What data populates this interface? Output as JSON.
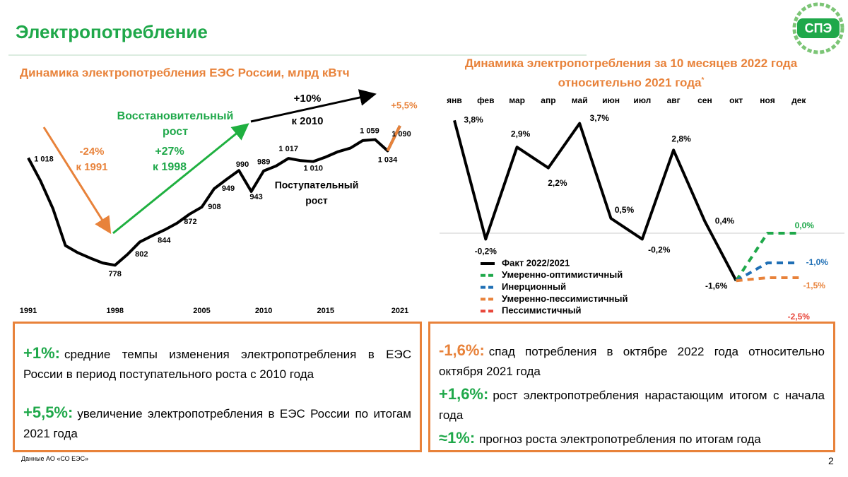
{
  "header": {
    "title": "Электропотребление",
    "logo": "СПЭ"
  },
  "chart_data": [
    {
      "type": "line",
      "title": "Динамика электропотребления ЕЭС России, млрд кВтч",
      "x": [
        1991,
        1992,
        1993,
        1994,
        1995,
        1996,
        1997,
        1998,
        1999,
        2000,
        2001,
        2002,
        2003,
        2004,
        2005,
        2006,
        2007,
        2008,
        2009,
        2010,
        2011,
        2012,
        2013,
        2014,
        2015,
        2016,
        2017,
        2018,
        2019,
        2020,
        2021
      ],
      "xlim": [
        1991,
        2021
      ],
      "xticks": [
        1991,
        1998,
        2005,
        2010,
        2015,
        2021
      ],
      "ylim": [
        720,
        1150
      ],
      "series": [
        {
          "color": "#000000",
          "last_segment_color": "#e8823a",
          "values": [
            1018,
            966,
            904,
            822,
            806,
            794,
            783,
            778,
            802,
            830,
            844,
            857,
            872,
            892,
            908,
            949,
            970,
            990,
            943,
            989,
            1000,
            1017,
            1012,
            1010,
            1020,
            1032,
            1040,
            1057,
            1059,
            1034,
            1090
          ],
          "value_labels": [
            "1 018",
            null,
            null,
            null,
            null,
            null,
            null,
            "778",
            "802",
            null,
            "844",
            null,
            "872",
            null,
            "908",
            "949",
            null,
            "990",
            "943",
            "989",
            null,
            "1 017",
            null,
            "1 010",
            null,
            null,
            null,
            null,
            "1 059",
            "1 034",
            "1 090"
          ]
        }
      ],
      "annotations": [
        {
          "lines": [
            "-24%",
            "к 1991"
          ],
          "color": "#e8823a"
        },
        {
          "lines": [
            "Восстановительный",
            "рост"
          ],
          "color": "#1fa84a"
        },
        {
          "lines": [
            "+27%",
            "к 1998"
          ],
          "color": "#1fa84a"
        },
        {
          "lines": [
            "+10%",
            "к 2010"
          ],
          "color": "#000000"
        },
        {
          "lines": [
            "Поступательный",
            "рост"
          ],
          "color": "#000000"
        },
        {
          "lines": [
            "+5,5%"
          ],
          "color": "#e8823a"
        }
      ]
    },
    {
      "type": "line",
      "title": "Динамика электропотребления за 10 месяцев 2022 года относительно 2021 года",
      "title_note": "*",
      "categories": [
        "янв",
        "фев",
        "мар",
        "апр",
        "май",
        "июн",
        "июл",
        "авг",
        "сен",
        "окт",
        "ноя",
        "дек"
      ],
      "ylim": [
        -3,
        4.5
      ],
      "series": [
        {
          "name": "Факт 2022/2021",
          "color": "#000000",
          "line_style": "solid",
          "values": [
            3.8,
            -0.2,
            2.9,
            2.2,
            3.7,
            0.5,
            -0.2,
            2.8,
            0.4,
            -1.6,
            null,
            null
          ],
          "value_labels": [
            "3,8%",
            "-0,2%",
            "2,9%",
            "2,2%",
            "3,7%",
            "0,5%",
            "-0,2%",
            "2,8%",
            "0,4%",
            "-1,6%",
            null,
            null
          ]
        },
        {
          "name": "Умеренно-оптимистичный",
          "color": "#1fa84a",
          "line_style": "dashed",
          "values": [
            null,
            null,
            null,
            null,
            null,
            null,
            null,
            null,
            null,
            -1.6,
            0.0,
            0.0
          ],
          "value_labels": [
            null,
            null,
            null,
            null,
            null,
            null,
            null,
            null,
            null,
            null,
            null,
            "0,0%"
          ]
        },
        {
          "name": "Инерционный",
          "color": "#1f6fb5",
          "line_style": "dashed",
          "values": [
            null,
            null,
            null,
            null,
            null,
            null,
            null,
            null,
            null,
            -1.6,
            -1.0,
            -1.0
          ],
          "value_labels": [
            null,
            null,
            null,
            null,
            null,
            null,
            null,
            null,
            null,
            null,
            null,
            "-1,0%"
          ]
        },
        {
          "name": "Умеренно-пессимистичный",
          "color": "#e8823a",
          "line_style": "dashed",
          "values": [
            null,
            null,
            null,
            null,
            null,
            null,
            null,
            null,
            null,
            -1.6,
            -1.5,
            -1.5
          ],
          "value_labels": [
            null,
            null,
            null,
            null,
            null,
            null,
            null,
            null,
            null,
            null,
            null,
            "-1,5%"
          ]
        },
        {
          "name": "Пессимистичный",
          "color": "#e8463a",
          "line_style": "dashed",
          "values": [
            null,
            null,
            null,
            null,
            null,
            null,
            null,
            null,
            null,
            -1.6,
            null,
            -2.5
          ],
          "value_labels": [
            null,
            null,
            null,
            null,
            null,
            null,
            null,
            null,
            null,
            null,
            null,
            "-2,5%"
          ]
        }
      ]
    }
  ],
  "notes_left": [
    {
      "lead": "+1%:",
      "text": "средние темпы изменения электропотребления в ЕЭС России в период поступательного роста с 2010 года"
    },
    {
      "lead": "+5,5%:",
      "text": "увеличение электропотребления в ЕЭС России по итогам 2021 года"
    }
  ],
  "notes_right": [
    {
      "lead": "-1,6%:",
      "text": "спад потребления в октябре 2022 года относительно октября 2021 года"
    },
    {
      "lead": "+1,6%:",
      "text": "рост электропотребления нарастающим итогом с начала года"
    },
    {
      "lead": "≈1%:",
      "text": "прогноз роста электропотребления по итогам года"
    }
  ],
  "footer": {
    "source": "Данные АО «СО ЕЭС»",
    "page": "2"
  }
}
